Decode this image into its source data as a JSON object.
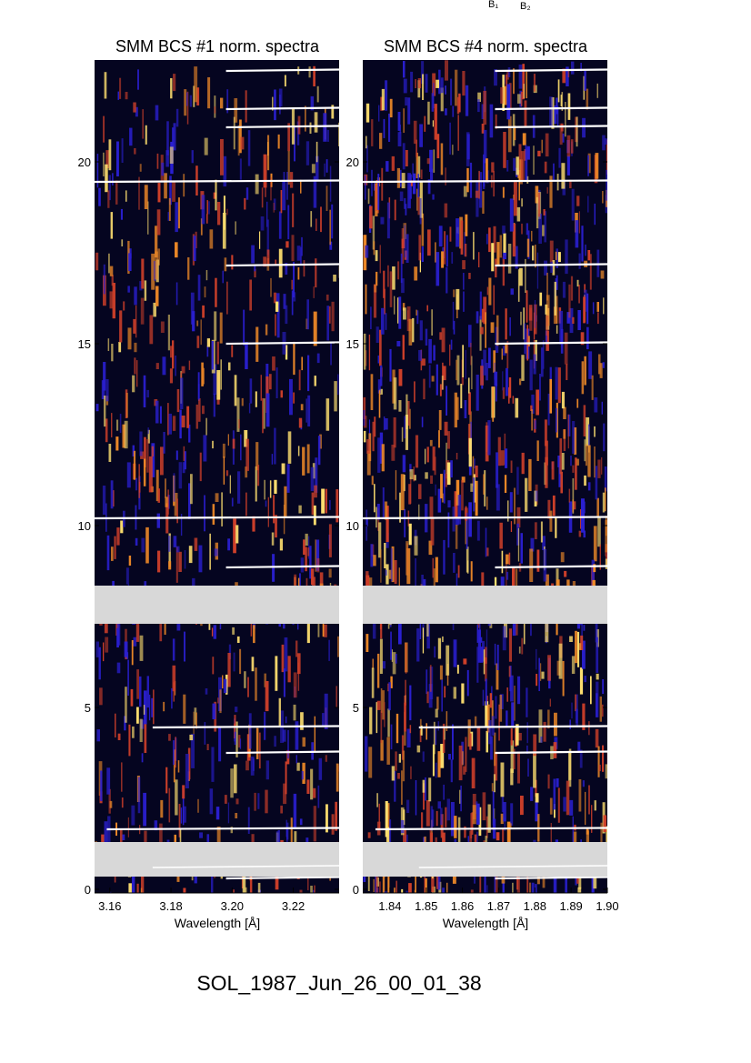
{
  "figure_label": "SOL_1987_Jun_26_00_01_38",
  "top_labels": [
    "B₁",
    "B₂"
  ],
  "colors": {
    "background": "#ffffff",
    "spectrum_dark": "#050520",
    "spectrum_blue": "#2a1fd0",
    "spectrum_red": "#d0402a",
    "spectrum_orange": "#f08a28",
    "spectrum_yellow": "#ffe070",
    "data_gap": "#d8d8d8",
    "scan_lines": "#ffffff"
  },
  "chart_data": [
    {
      "type": "heatmap",
      "title": "SMM BCS #1 norm. spectra",
      "xlabel": "Wavelength [Å]",
      "ylabel": "",
      "xlim": [
        3.155,
        3.235
      ],
      "xticks": [
        "3.16",
        "3.18",
        "3.20",
        "3.22"
      ],
      "xtick_values": [
        3.16,
        3.18,
        3.2,
        3.22
      ],
      "ylim": [
        -0.1,
        22.8
      ],
      "yticks": [
        "0",
        "5",
        "10",
        "15",
        "20"
      ],
      "ytick_values": [
        0,
        5,
        10,
        15,
        20
      ],
      "gaps": [
        [
          0.35,
          1.3
        ],
        [
          7.3,
          8.35
        ]
      ],
      "density": 0.55,
      "colormap": "dark-blue-red-yellow",
      "lines": [
        {
          "y": 22.5,
          "x_start": 3.198
        },
        {
          "y": 21.45,
          "x_start": 3.198
        },
        {
          "y": 20.95,
          "x_start": 3.198
        },
        {
          "y": 19.45,
          "x_start": 3.155
        },
        {
          "y": 17.15,
          "x_start": 3.198
        },
        {
          "y": 15.0,
          "x_start": 3.198
        },
        {
          "y": 10.2,
          "x_start": 3.155
        },
        {
          "y": 8.85,
          "x_start": 3.198
        },
        {
          "y": 4.45,
          "x_start": 3.174
        },
        {
          "y": 3.75,
          "x_start": 3.198
        },
        {
          "y": 1.65,
          "x_start": 3.159
        },
        {
          "y": 0.6,
          "x_start": 3.174
        },
        {
          "y": 0.3,
          "x_start": 3.198
        }
      ]
    },
    {
      "type": "heatmap",
      "title": "SMM BCS #4 norm. spectra",
      "xlabel": "Wavelength [Å]",
      "ylabel": "",
      "xlim": [
        1.8325,
        1.9
      ],
      "xticks": [
        "1.84",
        "1.85",
        "1.86",
        "1.87",
        "1.88",
        "1.89",
        "1.90"
      ],
      "xtick_values": [
        1.84,
        1.85,
        1.86,
        1.87,
        1.88,
        1.89,
        1.9
      ],
      "ylim": [
        -0.1,
        22.8
      ],
      "yticks": [
        "0",
        "5",
        "10",
        "15",
        "20"
      ],
      "ytick_values": [
        0,
        5,
        10,
        15,
        20
      ],
      "gaps": [
        [
          0.35,
          1.3
        ],
        [
          7.3,
          8.35
        ]
      ],
      "density": 0.85,
      "colormap": "dark-blue-red-yellow",
      "lines": [
        {
          "y": 22.5,
          "x_start": 1.869
        },
        {
          "y": 21.45,
          "x_start": 1.869
        },
        {
          "y": 20.95,
          "x_start": 1.869
        },
        {
          "y": 19.45,
          "x_start": 1.8325
        },
        {
          "y": 17.15,
          "x_start": 1.869
        },
        {
          "y": 15.0,
          "x_start": 1.869
        },
        {
          "y": 10.2,
          "x_start": 1.8325
        },
        {
          "y": 8.85,
          "x_start": 1.869
        },
        {
          "y": 4.45,
          "x_start": 1.848
        },
        {
          "y": 3.75,
          "x_start": 1.869
        },
        {
          "y": 1.65,
          "x_start": 1.836
        },
        {
          "y": 0.6,
          "x_start": 1.848
        },
        {
          "y": 0.3,
          "x_start": 1.869
        }
      ]
    }
  ]
}
